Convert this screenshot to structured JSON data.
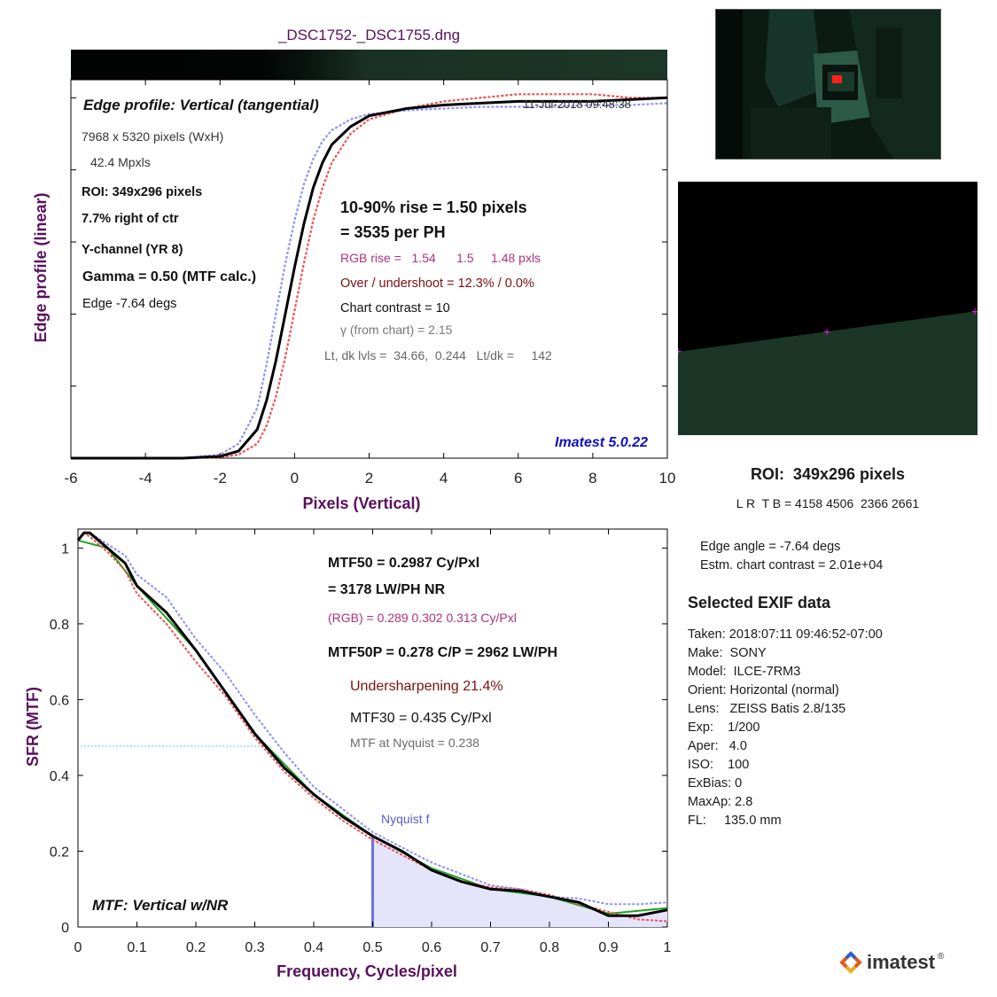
{
  "file_title": "_DSC1752-_DSC1755.dng",
  "colors": {
    "title": "#5a0f5e",
    "magenta": "#b03080",
    "darkred": "#7a1010",
    "gray": "#6a6a6a",
    "blue_label": "#1010c0",
    "nyquist": "#5a5ad0",
    "red_series": "#f05050",
    "blue_series": "#9090f0",
    "green_series": "#20a020"
  },
  "edge_panel": {
    "title": "Edge profile: Vertical (tangential)",
    "timestamp": "11-Jul-2018 09:48:38",
    "info": {
      "pixels": "7968 x 5320 pixels (WxH)",
      "mpxls": "42.4 Mpxls",
      "roi": "ROI:  349x296 pixels",
      "position": "7.7% right of ctr",
      "channel": "Y-channel  (YR 8)",
      "gamma": "Gamma = 0.50 (MTF calc.)",
      "edge": "Edge  -7.64 degs"
    },
    "results": {
      "rise": "10-90% rise = 1.50 pixels",
      "per_ph": "=   3535 per PH",
      "rgb_rise": "RGB rise =   1.54      1.5     1.48 pxls",
      "overshoot": "Over / undershoot = 12.3% /  0.0%",
      "contrast": "Chart contrast = 10",
      "gamma_chart": "γ (from chart) =  2.15",
      "levels": "Lt, dk lvls =  34.66,  0.244   Lt/dk =     142"
    },
    "version": "Imatest 5.0.22",
    "ylabel": "Edge profile (linear)",
    "xlabel": "Pixels (Vertical)",
    "xticks": [
      "-6",
      "-4",
      "-2",
      "0",
      "2",
      "4",
      "6",
      "8",
      "10"
    ]
  },
  "mtf_panel": {
    "lines": {
      "mtf50": "MTF50 = 0.2987 Cy/Pxl",
      "lwph": "= 3178 LW/PH  NR",
      "rgb": "(RGB) = 0.289  0.302  0.313 Cy/Pxl",
      "mtf50p": "MTF50P = 0.278 C/P = 2962 LW/PH",
      "undersharp": "Undersharpening 21.4%",
      "mtf30": "MTF30 = 0.435 Cy/Pxl",
      "nyq_mtf": "MTF at Nyquist = 0.238"
    },
    "nyquist_label": "Nyquist f",
    "corner_label": "MTF: Vertical w/NR",
    "ylabel": "SFR (MTF)",
    "xlabel": "Frequency, Cycles/pixel",
    "xticks": [
      "0",
      "0.1",
      "0.2",
      "0.3",
      "0.4",
      "0.5",
      "0.6",
      "0.7",
      "0.8",
      "0.9",
      "1"
    ],
    "yticks": [
      "0",
      "0.2",
      "0.4",
      "0.6",
      "0.8",
      "1"
    ]
  },
  "roi_info": {
    "title": "ROI:  349x296 pixels",
    "lrtb": "L R  T B = 4158 4506  2366 2661"
  },
  "edge_info": {
    "angle": "Edge angle = -7.64 degs",
    "contrast": "Estm. chart contrast = 2.01e+04"
  },
  "exif": {
    "title": "Selected EXIF data",
    "lines": [
      "Taken: 2018:07:11 09:46:52-07:00",
      "Make:  SONY",
      "Model:  ILCE-7RM3",
      "Orient: Horizontal (normal)",
      "Lens:   ZEISS Batis 2.8/135",
      "Exp:    1/200",
      "Aper:   4.0",
      "ISO:    100",
      "ExBias: 0",
      "MaxAp: 2.8",
      "FL:     135.0 mm"
    ]
  },
  "logo_text": "imatest",
  "chart_data": [
    {
      "type": "line",
      "title": "Edge profile: Vertical (tangential)",
      "xlabel": "Pixels (Vertical)",
      "ylabel": "Edge profile (linear)",
      "xlim": [
        -6,
        10
      ],
      "ylim": [
        0,
        1.05
      ],
      "series": [
        {
          "color": "#000000",
          "x": [
            -6,
            -3,
            -2,
            -1.5,
            -1,
            -0.75,
            -0.5,
            -0.25,
            0,
            0.25,
            0.5,
            0.75,
            1,
            1.5,
            2,
            3,
            4,
            5,
            6,
            7,
            8,
            9,
            10
          ],
          "y": [
            0,
            0,
            0.005,
            0.02,
            0.08,
            0.16,
            0.27,
            0.4,
            0.53,
            0.65,
            0.75,
            0.82,
            0.87,
            0.92,
            0.95,
            0.97,
            0.98,
            0.985,
            0.99,
            0.99,
            0.99,
            0.995,
            1.0
          ]
        },
        {
          "color": "#f05050",
          "x": [
            -6,
            -3,
            -2,
            -1.5,
            -1,
            -0.75,
            -0.5,
            -0.25,
            0,
            0.25,
            0.5,
            0.75,
            1,
            1.5,
            2,
            3,
            4,
            5,
            6,
            7,
            8,
            9,
            10
          ],
          "y": [
            0,
            0,
            0.002,
            0.01,
            0.04,
            0.09,
            0.17,
            0.28,
            0.41,
            0.54,
            0.66,
            0.75,
            0.82,
            0.9,
            0.94,
            0.97,
            0.99,
            1.0,
            1.01,
            1.01,
            1.01,
            1.0,
            1.0
          ]
        },
        {
          "color": "#9090f0",
          "x": [
            -6,
            -3,
            -2,
            -1.5,
            -1,
            -0.75,
            -0.5,
            -0.25,
            0,
            0.25,
            0.5,
            0.75,
            1,
            1.5,
            2,
            3,
            4,
            5,
            6,
            7,
            8,
            9,
            10
          ],
          "y": [
            0,
            0,
            0.01,
            0.04,
            0.14,
            0.26,
            0.4,
            0.54,
            0.66,
            0.76,
            0.83,
            0.88,
            0.91,
            0.94,
            0.955,
            0.965,
            0.97,
            0.975,
            0.975,
            0.975,
            0.98,
            0.98,
            0.985
          ]
        }
      ]
    },
    {
      "type": "line",
      "title": "MTF: Vertical w/NR",
      "xlabel": "Frequency, Cycles/pixel",
      "ylabel": "SFR (MTF)",
      "xlim": [
        0,
        1
      ],
      "ylim": [
        0,
        1.05
      ],
      "nyquist": 0.5,
      "mtf50_marker": 0.5,
      "series": [
        {
          "color": "#000000",
          "x": [
            0,
            0.01,
            0.02,
            0.05,
            0.08,
            0.1,
            0.15,
            0.2,
            0.25,
            0.3,
            0.35,
            0.4,
            0.45,
            0.5,
            0.55,
            0.6,
            0.65,
            0.7,
            0.75,
            0.8,
            0.85,
            0.9,
            0.95,
            1.0
          ],
          "y": [
            1.02,
            1.04,
            1.04,
            1.0,
            0.96,
            0.9,
            0.83,
            0.73,
            0.62,
            0.51,
            0.42,
            0.35,
            0.29,
            0.24,
            0.2,
            0.15,
            0.12,
            0.1,
            0.095,
            0.08,
            0.065,
            0.03,
            0.03,
            0.045
          ]
        },
        {
          "color": "#f05050",
          "x": [
            0,
            0.01,
            0.02,
            0.05,
            0.08,
            0.1,
            0.15,
            0.2,
            0.25,
            0.3,
            0.35,
            0.4,
            0.45,
            0.5,
            0.55,
            0.6,
            0.65,
            0.7,
            0.75,
            0.8,
            0.85,
            0.9,
            0.95,
            1.0
          ],
          "y": [
            1.02,
            1.04,
            1.03,
            0.99,
            0.94,
            0.88,
            0.8,
            0.7,
            0.61,
            0.5,
            0.41,
            0.34,
            0.28,
            0.23,
            0.19,
            0.15,
            0.12,
            0.105,
            0.1,
            0.085,
            0.06,
            0.04,
            0.02,
            0.015
          ]
        },
        {
          "color": "#9090f0",
          "x": [
            0,
            0.01,
            0.02,
            0.05,
            0.08,
            0.1,
            0.15,
            0.2,
            0.25,
            0.3,
            0.35,
            0.4,
            0.45,
            0.5,
            0.55,
            0.6,
            0.65,
            0.7,
            0.75,
            0.8,
            0.85,
            0.9,
            0.95,
            1.0
          ],
          "y": [
            1.02,
            1.04,
            1.04,
            1.01,
            0.98,
            0.93,
            0.87,
            0.76,
            0.67,
            0.56,
            0.46,
            0.37,
            0.31,
            0.25,
            0.21,
            0.17,
            0.14,
            0.11,
            0.1,
            0.08,
            0.075,
            0.06,
            0.06,
            0.065
          ]
        },
        {
          "color": "#20a020",
          "x": [
            0,
            0.05,
            0.1,
            0.2,
            0.3,
            0.4,
            0.5,
            0.6,
            0.7,
            0.8,
            0.9,
            1.0
          ],
          "y": [
            1.02,
            1.0,
            0.9,
            0.73,
            0.51,
            0.35,
            0.24,
            0.155,
            0.1,
            0.08,
            0.035,
            0.05
          ]
        }
      ]
    }
  ]
}
